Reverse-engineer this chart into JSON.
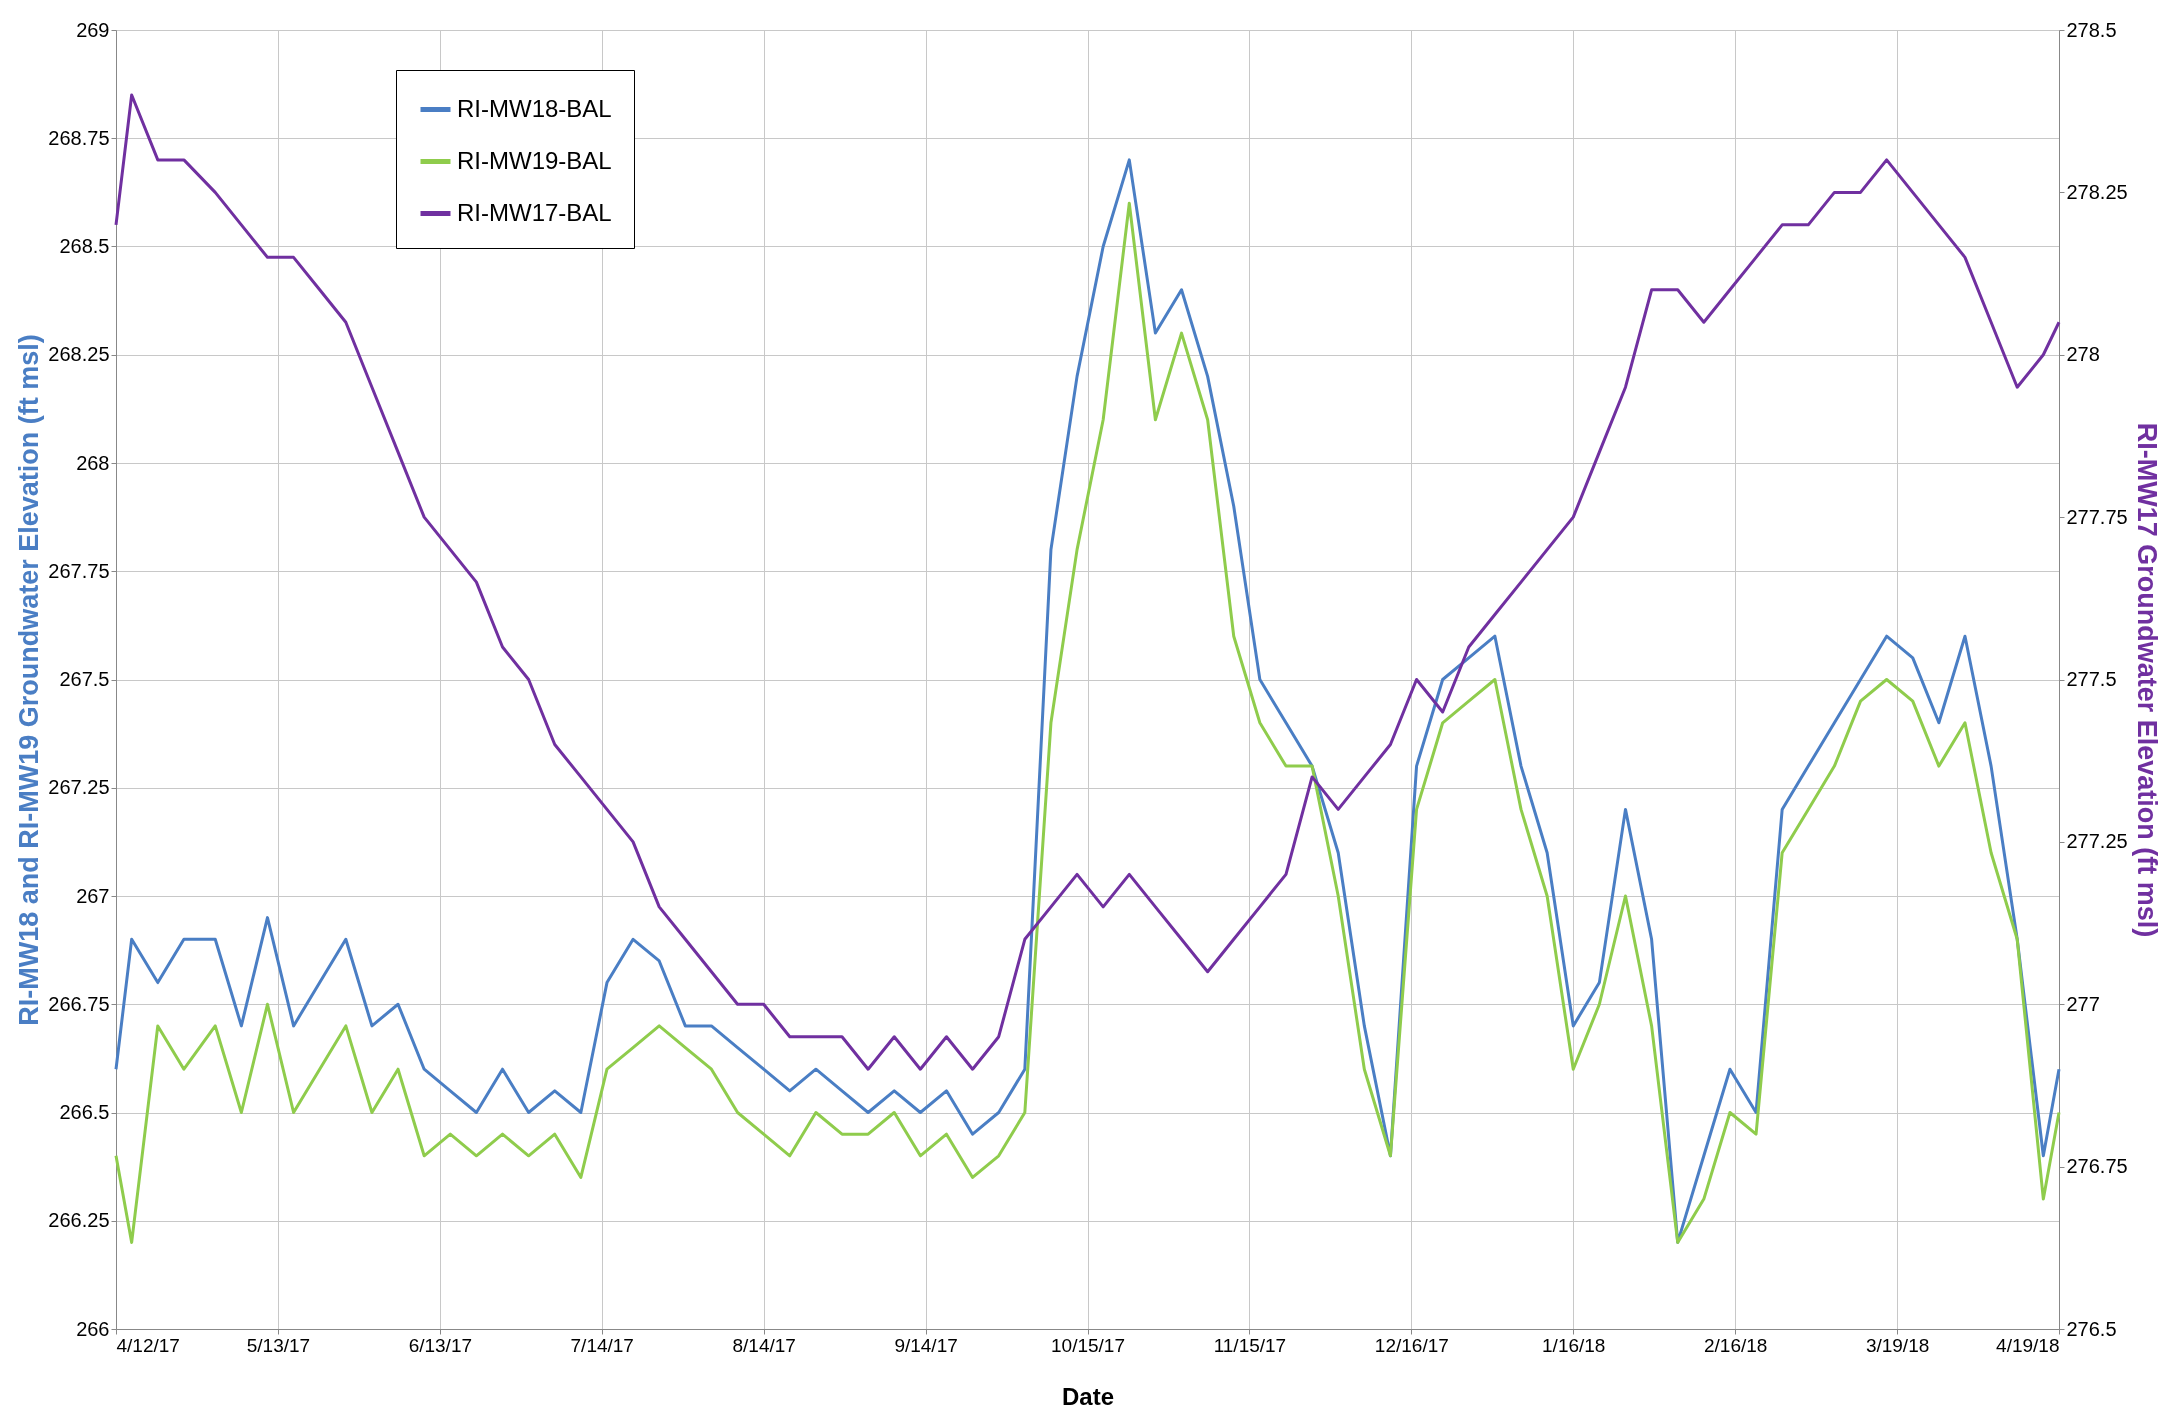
{
  "chart_data": {
    "type": "line",
    "xlabel": "Date",
    "ylabel": "RI-MW18 and RI-MW19 Groundwater Elevation (ft msl)",
    "y2label": "RI-MW17 Groundwater Elevation (ft msl)",
    "x": [
      "2017-04-12",
      "2017-04-15",
      "2017-04-20",
      "2017-04-25",
      "2017-05-01",
      "2017-05-06",
      "2017-05-11",
      "2017-05-16",
      "2017-05-21",
      "2017-05-26",
      "2017-05-31",
      "2017-06-05",
      "2017-06-10",
      "2017-06-15",
      "2017-06-20",
      "2017-06-25",
      "2017-06-30",
      "2017-07-05",
      "2017-07-10",
      "2017-07-15",
      "2017-07-20",
      "2017-07-25",
      "2017-07-30",
      "2017-08-04",
      "2017-08-09",
      "2017-08-14",
      "2017-08-19",
      "2017-08-24",
      "2017-08-29",
      "2017-09-03",
      "2017-09-08",
      "2017-09-13",
      "2017-09-18",
      "2017-09-23",
      "2017-09-28",
      "2017-10-03",
      "2017-10-08",
      "2017-10-13",
      "2017-10-18",
      "2017-10-23",
      "2017-10-28",
      "2017-11-02",
      "2017-11-07",
      "2017-11-12",
      "2017-11-17",
      "2017-11-22",
      "2017-11-27",
      "2017-12-02",
      "2017-12-07",
      "2017-12-12",
      "2017-12-17",
      "2017-12-22",
      "2017-12-27",
      "2018-01-01",
      "2018-01-06",
      "2018-01-11",
      "2018-01-16",
      "2018-01-21",
      "2018-01-26",
      "2018-01-31",
      "2018-02-05",
      "2018-02-10",
      "2018-02-15",
      "2018-02-20",
      "2018-02-25",
      "2018-03-02",
      "2018-03-07",
      "2018-03-12",
      "2018-03-17",
      "2018-03-22",
      "2018-03-27",
      "2018-04-01",
      "2018-04-06",
      "2018-04-11",
      "2018-04-16",
      "2018-04-19"
    ],
    "series": [
      {
        "name": "RI-MW18-BAL",
        "color": "#4a7ec4",
        "values": [
          266.6,
          266.9,
          266.8,
          266.9,
          266.9,
          266.7,
          266.95,
          266.7,
          266.8,
          266.9,
          266.7,
          266.75,
          266.6,
          266.55,
          266.5,
          266.6,
          266.5,
          266.55,
          266.5,
          266.8,
          266.9,
          266.85,
          266.7,
          266.7,
          266.65,
          266.6,
          266.55,
          266.6,
          266.55,
          266.5,
          266.55,
          266.5,
          266.55,
          266.45,
          266.5,
          266.6,
          267.8,
          268.2,
          268.5,
          268.7,
          268.3,
          268.4,
          268.2,
          267.9,
          267.5,
          267.4,
          267.3,
          267.1,
          266.7,
          266.4,
          267.3,
          267.5,
          267.55,
          267.6,
          267.3,
          267.1,
          266.7,
          266.8,
          267.2,
          266.9,
          266.2,
          266.4,
          266.6,
          266.5,
          267.2,
          267.3,
          267.4,
          267.5,
          267.6,
          267.55,
          267.4,
          267.6,
          267.3,
          266.9,
          266.4,
          266.6
        ]
      },
      {
        "name": "RI-MW19-BAL",
        "color": "#8fcc4c",
        "values": [
          266.4,
          266.2,
          266.7,
          266.6,
          266.7,
          266.5,
          266.75,
          266.5,
          266.6,
          266.7,
          266.5,
          266.6,
          266.4,
          266.45,
          266.4,
          266.45,
          266.4,
          266.45,
          266.35,
          266.6,
          266.65,
          266.7,
          266.65,
          266.6,
          266.5,
          266.45,
          266.4,
          266.5,
          266.45,
          266.45,
          266.5,
          266.4,
          266.45,
          266.35,
          266.4,
          266.5,
          267.4,
          267.8,
          268.1,
          268.6,
          268.1,
          268.3,
          268.1,
          267.6,
          267.4,
          267.3,
          267.3,
          267.0,
          266.6,
          266.4,
          267.2,
          267.4,
          267.45,
          267.5,
          267.2,
          267.0,
          266.6,
          266.75,
          267.0,
          266.7,
          266.2,
          266.3,
          266.5,
          266.45,
          267.1,
          267.2,
          267.3,
          267.45,
          267.5,
          267.45,
          267.3,
          267.4,
          267.1,
          266.9,
          266.3,
          266.5
        ]
      },
      {
        "name": "RI-MW17-BAL",
        "color": "#7030a0",
        "axis": "y2",
        "values": [
          278.2,
          278.4,
          278.3,
          278.3,
          278.25,
          278.2,
          278.15,
          278.15,
          278.1,
          278.05,
          277.95,
          277.85,
          277.75,
          277.7,
          277.65,
          277.55,
          277.5,
          277.4,
          277.35,
          277.3,
          277.25,
          277.15,
          277.1,
          277.05,
          277.0,
          277.0,
          276.95,
          276.95,
          276.95,
          276.9,
          276.95,
          276.9,
          276.95,
          276.9,
          276.95,
          277.1,
          277.15,
          277.2,
          277.15,
          277.2,
          277.15,
          277.1,
          277.05,
          277.1,
          277.15,
          277.2,
          277.35,
          277.3,
          277.35,
          277.4,
          277.5,
          277.45,
          277.55,
          277.6,
          277.65,
          277.7,
          277.75,
          277.85,
          277.95,
          278.1,
          278.1,
          278.05,
          278.1,
          278.15,
          278.2,
          278.2,
          278.25,
          278.25,
          278.3,
          278.25,
          278.2,
          278.15,
          278.05,
          277.95,
          278.0,
          278.05
        ]
      }
    ],
    "xlim": [
      "2017-04-12",
      "2018-04-19"
    ],
    "xticks": [
      {
        "value": "2017-04-12",
        "label": "4/12/17"
      },
      {
        "value": "2017-05-13",
        "label": "5/13/17"
      },
      {
        "value": "2017-06-13",
        "label": "6/13/17"
      },
      {
        "value": "2017-07-14",
        "label": "7/14/17"
      },
      {
        "value": "2017-08-14",
        "label": "8/14/17"
      },
      {
        "value": "2017-09-14",
        "label": "9/14/17"
      },
      {
        "value": "2017-10-15",
        "label": "10/15/17"
      },
      {
        "value": "2017-11-15",
        "label": "11/15/17"
      },
      {
        "value": "2017-12-16",
        "label": "12/16/17"
      },
      {
        "value": "2018-01-16",
        "label": "1/16/18"
      },
      {
        "value": "2018-02-16",
        "label": "2/16/18"
      },
      {
        "value": "2018-03-19",
        "label": "3/19/18"
      },
      {
        "value": "2018-04-19",
        "label": "4/19/18"
      }
    ],
    "ylim": [
      266,
      269
    ],
    "yticks": [
      266,
      266.25,
      266.5,
      266.75,
      267,
      267.25,
      267.5,
      267.75,
      268,
      268.25,
      268.5,
      268.75,
      269
    ],
    "y2lim": [
      276.5,
      278.5
    ],
    "y2ticks": [
      276.5,
      276.75,
      277,
      277.25,
      277.5,
      277.75,
      278,
      278.25,
      278.5
    ],
    "grid": true,
    "legend": "top left",
    "line_style": "solid",
    "marker": "none"
  }
}
